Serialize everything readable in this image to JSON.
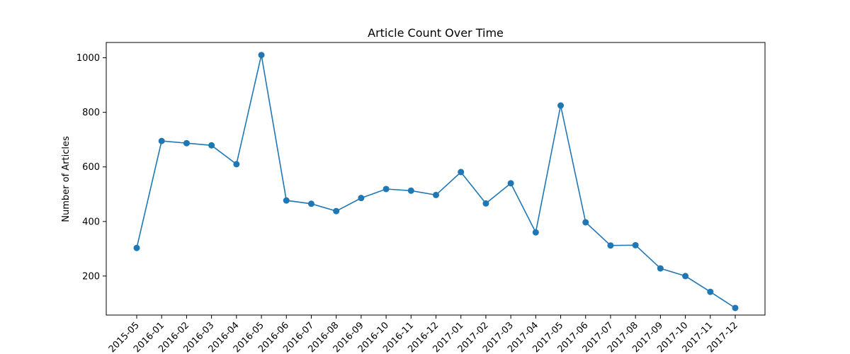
{
  "chart_data": {
    "type": "line",
    "title": "Article Count Over Time",
    "xlabel": "",
    "ylabel": "Number of Articles",
    "categories": [
      "2015-05",
      "2016-01",
      "2016-02",
      "2016-03",
      "2016-04",
      "2016-05",
      "2016-06",
      "2016-07",
      "2016-08",
      "2016-09",
      "2016-10",
      "2016-11",
      "2016-12",
      "2017-01",
      "2017-02",
      "2017-03",
      "2017-04",
      "2017-05",
      "2017-06",
      "2017-07",
      "2017-08",
      "2017-09",
      "2017-10",
      "2017-11",
      "2017-12"
    ],
    "values": [
      303,
      695,
      687,
      679,
      610,
      1010,
      477,
      465,
      438,
      486,
      519,
      513,
      497,
      581,
      466,
      540,
      360,
      825,
      397,
      312,
      313,
      228,
      200,
      142,
      83
    ],
    "ylim": [
      57,
      1056
    ],
    "yticks": [
      200,
      400,
      600,
      800,
      1000
    ],
    "grid": false,
    "marker": "circle",
    "color": "#1f77b4"
  }
}
